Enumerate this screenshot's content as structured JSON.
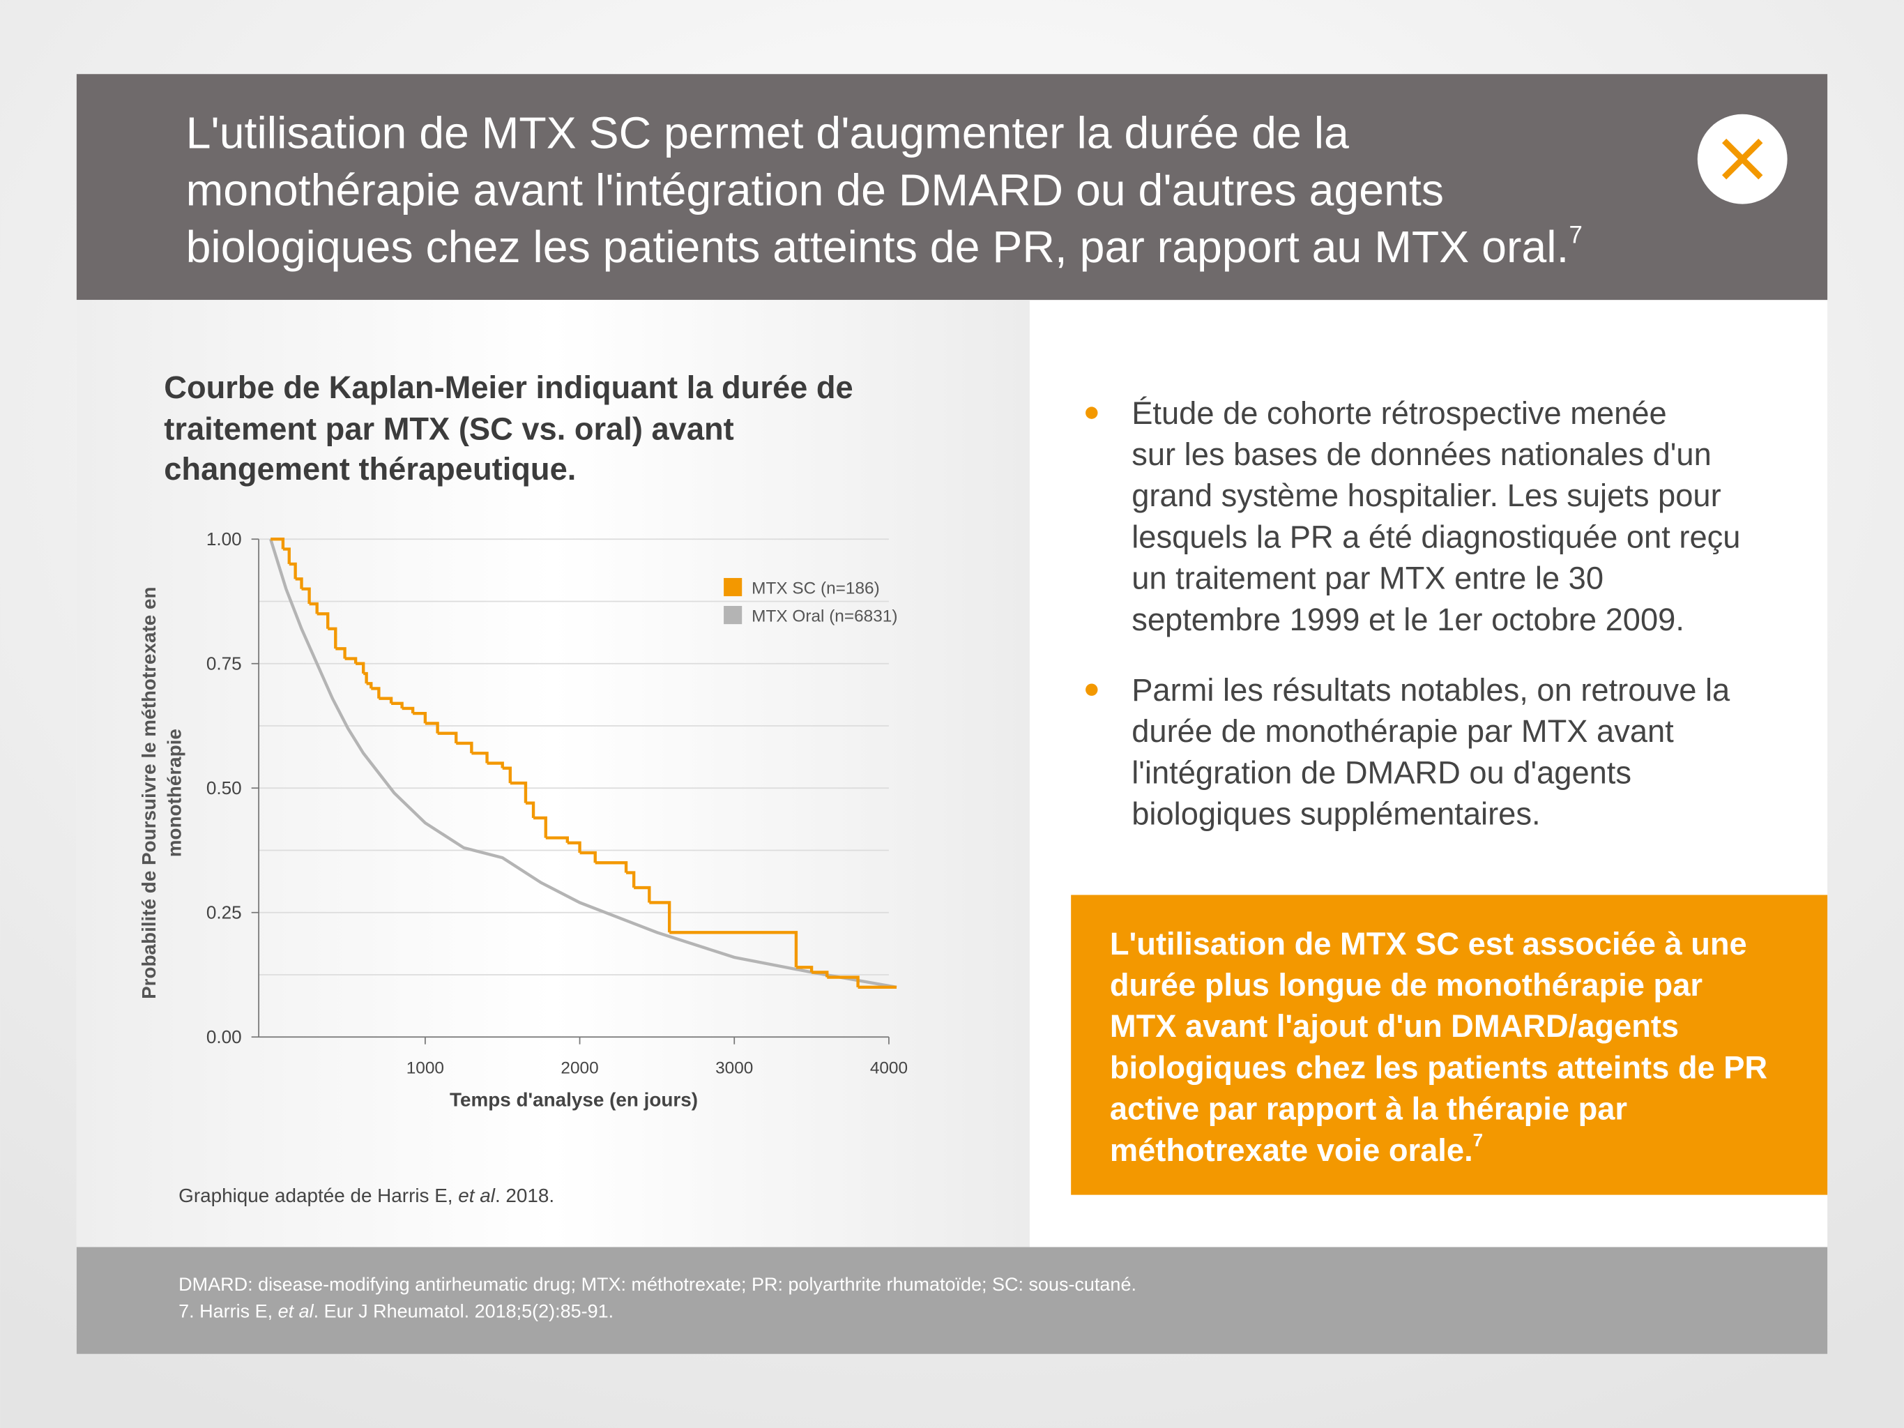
{
  "header": {
    "title_lines": [
      "L'utilisation de MTX SC permet d'augmenter la durée de la",
      "monothérapie avant l'intégration de DMARD ou d'autres agents",
      "biologiques chez les patients atteints de PR, par rapport au MTX oral."
    ],
    "title_sup": "7"
  },
  "chart_title_lines": [
    "Courbe de Kaplan-Meier indiquant la durée de",
    "traitement par MTX (SC vs. oral) avant",
    "changement thérapeutique."
  ],
  "chart_data": {
    "type": "step-line",
    "xlabel": "Temps d'analyse (en jours)",
    "ylabel_lines": [
      "Probabilité de Poursuivre le méthotrexate en",
      "monothérapie"
    ],
    "xlim": [
      -77,
      4000
    ],
    "ylim": [
      0,
      1
    ],
    "xticks": [
      1000,
      2000,
      3000,
      4000
    ],
    "yticks": [
      {
        "value": 0,
        "label": "0.00"
      },
      {
        "value": 0.25,
        "label": "0.25"
      },
      {
        "value": 0.5,
        "label": "0.50"
      },
      {
        "value": 0.75,
        "label": "0.75"
      },
      {
        "value": 1,
        "label": "1.00"
      }
    ],
    "minor_yticks": [
      0.125,
      0.375,
      0.625,
      0.875
    ],
    "grid": true,
    "legend": "upper right",
    "series": [
      {
        "name": "MTX SC (n=186)",
        "color": "#f39800",
        "x": [
          0,
          80,
          120,
          160,
          200,
          250,
          300,
          370,
          420,
          480,
          550,
          600,
          620,
          650,
          700,
          780,
          850,
          920,
          1000,
          1080,
          1200,
          1300,
          1400,
          1500,
          1550,
          1650,
          1700,
          1780,
          1920,
          2000,
          2100,
          2300,
          2350,
          2450,
          2580,
          3400,
          3500,
          3600,
          3800,
          4050
        ],
        "values": [
          1.0,
          0.98,
          0.95,
          0.92,
          0.9,
          0.87,
          0.85,
          0.82,
          0.78,
          0.76,
          0.75,
          0.73,
          0.71,
          0.7,
          0.68,
          0.67,
          0.66,
          0.65,
          0.63,
          0.61,
          0.59,
          0.57,
          0.55,
          0.54,
          0.51,
          0.47,
          0.44,
          0.4,
          0.39,
          0.37,
          0.35,
          0.33,
          0.3,
          0.27,
          0.21,
          0.14,
          0.13,
          0.12,
          0.1,
          0.1
        ]
      },
      {
        "name": "MTX Oral (n=6831)",
        "color": "#b4b4b4",
        "x": [
          0,
          100,
          200,
          300,
          400,
          500,
          600,
          800,
          1000,
          1250,
          1500,
          1750,
          2000,
          2500,
          3000,
          3500,
          4050
        ],
        "values": [
          1.0,
          0.9,
          0.82,
          0.75,
          0.68,
          0.62,
          0.57,
          0.49,
          0.43,
          0.38,
          0.36,
          0.31,
          0.27,
          0.21,
          0.16,
          0.13,
          0.1
        ]
      }
    ]
  },
  "caption": [
    "Graphique adaptée de Harris E, ",
    "et al",
    ". 2018."
  ],
  "bullets": [
    [
      "Étude de cohorte rétrospective menée",
      "sur les bases de données nationales d'un",
      "grand système hospitalier. Les sujets pour",
      "lesquels la PR a été diagnostiquée ont reçu",
      "un traitement par MTX entre le 30",
      "septembre 1999 et le 1er octobre 2009."
    ],
    [
      "Parmi les résultats notables, on retrouve la",
      "durée de monothérapie par MTX avant",
      "l'intégration de DMARD ou d'agents",
      "biologiques supplémentaires."
    ]
  ],
  "highlight": {
    "lines": [
      "L'utilisation de MTX SC est associée à une",
      "durée plus longue de monothérapie par",
      "MTX avant l'ajout d'un DMARD/agents",
      "biologiques chez les patients atteints de PR",
      "active par rapport à la thérapie par",
      "méthotrexate voie orale."
    ],
    "sup": "7"
  },
  "footer": {
    "abbreviations": "DMARD: disease-modifying antirheumatic drug; MTX: méthotrexate; PR: polyarthrite rhumatoïde; SC: sous-cutané.",
    "reference": [
      "7. Harris E, ",
      "et al",
      ". Eur J Rheumatol. 2018;5(2):85-91."
    ]
  }
}
